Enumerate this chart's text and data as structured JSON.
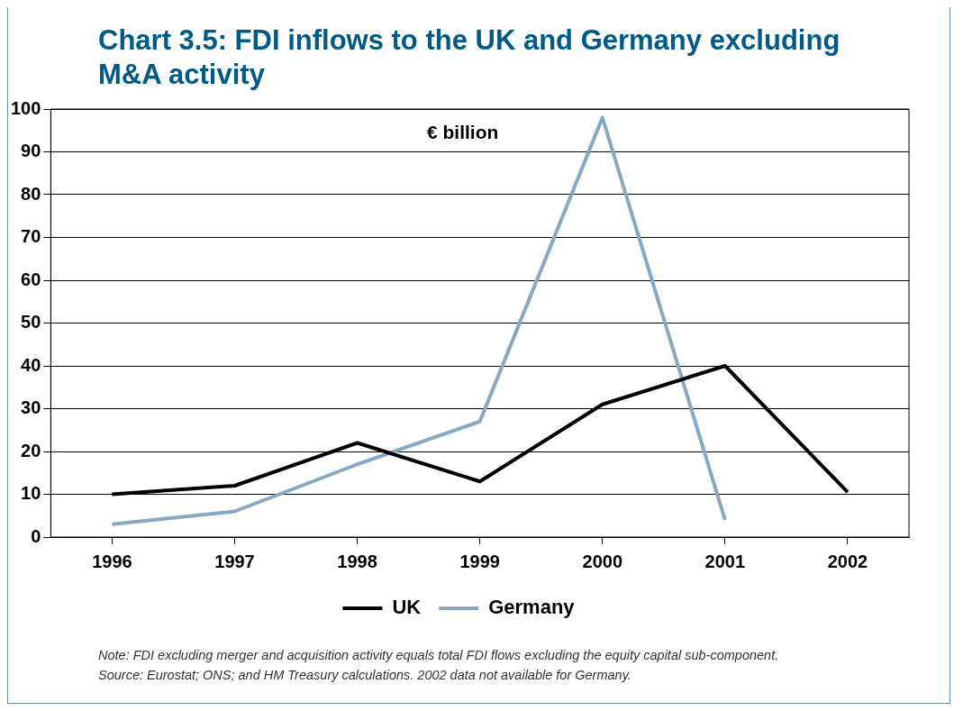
{
  "chart_data": {
    "type": "line",
    "title": "Chart 3.5: FDI inflows to the UK and Germany excluding M&A activity",
    "ylabel": "€ billion",
    "categories": [
      "1996",
      "1997",
      "1998",
      "1999",
      "2000",
      "2001",
      "2002"
    ],
    "series": [
      {
        "name": "UK",
        "color": "#000000",
        "values": [
          10,
          12,
          22,
          13,
          31,
          40,
          10.5
        ]
      },
      {
        "name": "Germany",
        "color": "#86a8c5",
        "values": [
          3,
          6,
          17,
          27,
          98,
          4,
          null
        ]
      }
    ],
    "ylim": [
      0,
      100
    ],
    "yticks": [
      0,
      10,
      20,
      30,
      40,
      50,
      60,
      70,
      80,
      90,
      100
    ],
    "grid": "y",
    "legend": "bottom",
    "marker": "none",
    "line_style": "solid",
    "annotations": [
      "Note: FDI excluding merger and acquisition activity equals total FDI flows excluding the equity capital sub-component.",
      "Source: Eurostat; ONS; and HM Treasury calculations. 2002 data not available for Germany."
    ]
  }
}
